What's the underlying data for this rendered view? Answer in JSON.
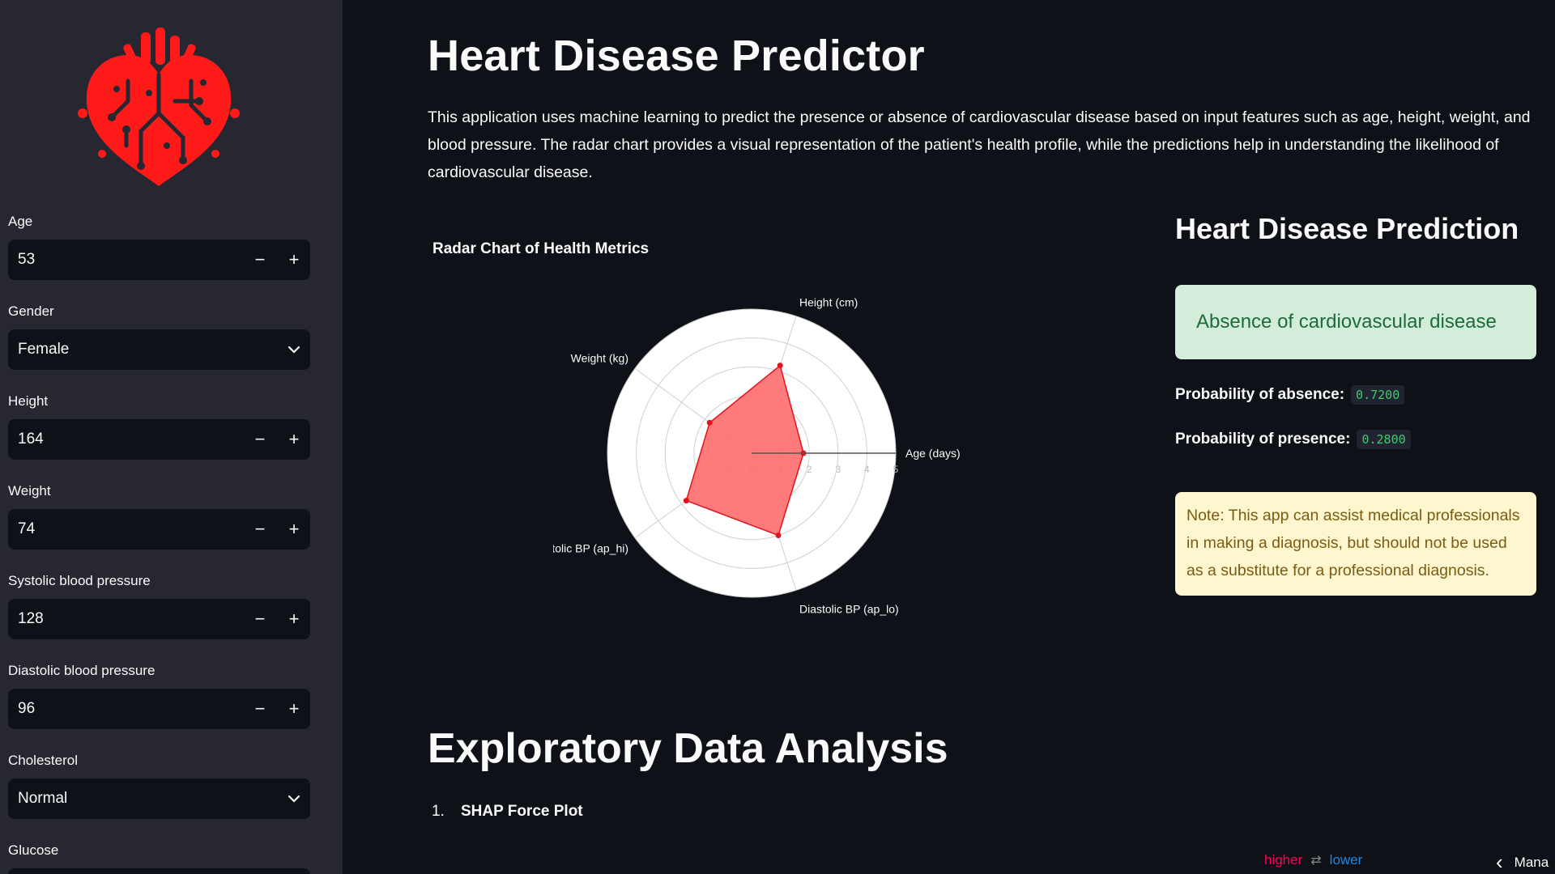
{
  "colors": {
    "background": "#0e1117",
    "sidebar": "#262730",
    "input_bg": "#0e1117",
    "logo_red": "#ff1a1a",
    "radar_fill": "#ff6b6b",
    "radar_point": "#e0141e",
    "success_bg": "#d4eddb",
    "success_text": "#1e6b3a",
    "note_bg": "#fdf6cf",
    "note_text": "#7a5c12",
    "code_green": "#3ec96c",
    "shap_higher": "#ff0051",
    "shap_lower": "#1e88e5"
  },
  "sidebar": {
    "logo_icon": "heart-circuit-icon",
    "fields": {
      "age": {
        "label": "Age",
        "value": "53",
        "minus": "−",
        "plus": "+"
      },
      "gender": {
        "label": "Gender",
        "value": "Female"
      },
      "height": {
        "label": "Height",
        "value": "164",
        "minus": "−",
        "plus": "+"
      },
      "weight": {
        "label": "Weight",
        "value": "74",
        "minus": "−",
        "plus": "+"
      },
      "systolic": {
        "label": "Systolic blood pressure",
        "value": "128",
        "minus": "−",
        "plus": "+"
      },
      "diastolic": {
        "label": "Diastolic blood pressure",
        "value": "96",
        "minus": "−",
        "plus": "+"
      },
      "cholesterol": {
        "label": "Cholesterol",
        "value": "Normal"
      },
      "glucose": {
        "label": "Glucose"
      }
    }
  },
  "main": {
    "title": "Heart Disease Predictor",
    "description": "This application uses machine learning to predict the presence or absence of cardiovascular disease based on input features such as age, height, weight, and blood pressure. The radar chart provides a visual representation of the patient's health profile, while the predictions help in understanding the likelihood of cardiovascular disease.",
    "prediction": {
      "title": "Heart Disease Prediction",
      "result": "Absence of cardiovascular disease",
      "absence_label": "Probability of absence:",
      "absence_value": "0.7200",
      "presence_label": "Probability of presence:",
      "presence_value": "0.2800",
      "note": "Note: This app can assist medical professionals in making a diagnosis, but should not be used as a substitute for a professional diagnosis."
    },
    "eda": {
      "title": "Exploratory Data Analysis",
      "items": [
        {
          "num": "1.",
          "label": "SHAP Force Plot"
        }
      ],
      "legend_higher": "higher",
      "legend_swap": "⇄",
      "legend_lower": "lower"
    },
    "bottom_right": {
      "chevron": "‹",
      "text": "Mana"
    }
  },
  "chart_data": {
    "type": "radar",
    "title": "Radar Chart of Health Metrics",
    "axes": [
      "Age (days)",
      "Height (cm)",
      "Weight (kg)",
      "Systolic BP (ap_hi)",
      "Diastolic BP (ap_lo)"
    ],
    "values": [
      1.8,
      3.2,
      1.8,
      2.8,
      3.0
    ],
    "rlim": [
      0,
      5
    ],
    "rticks": [
      "0",
      "1",
      "2",
      "3",
      "4",
      "5"
    ],
    "grid": true
  }
}
